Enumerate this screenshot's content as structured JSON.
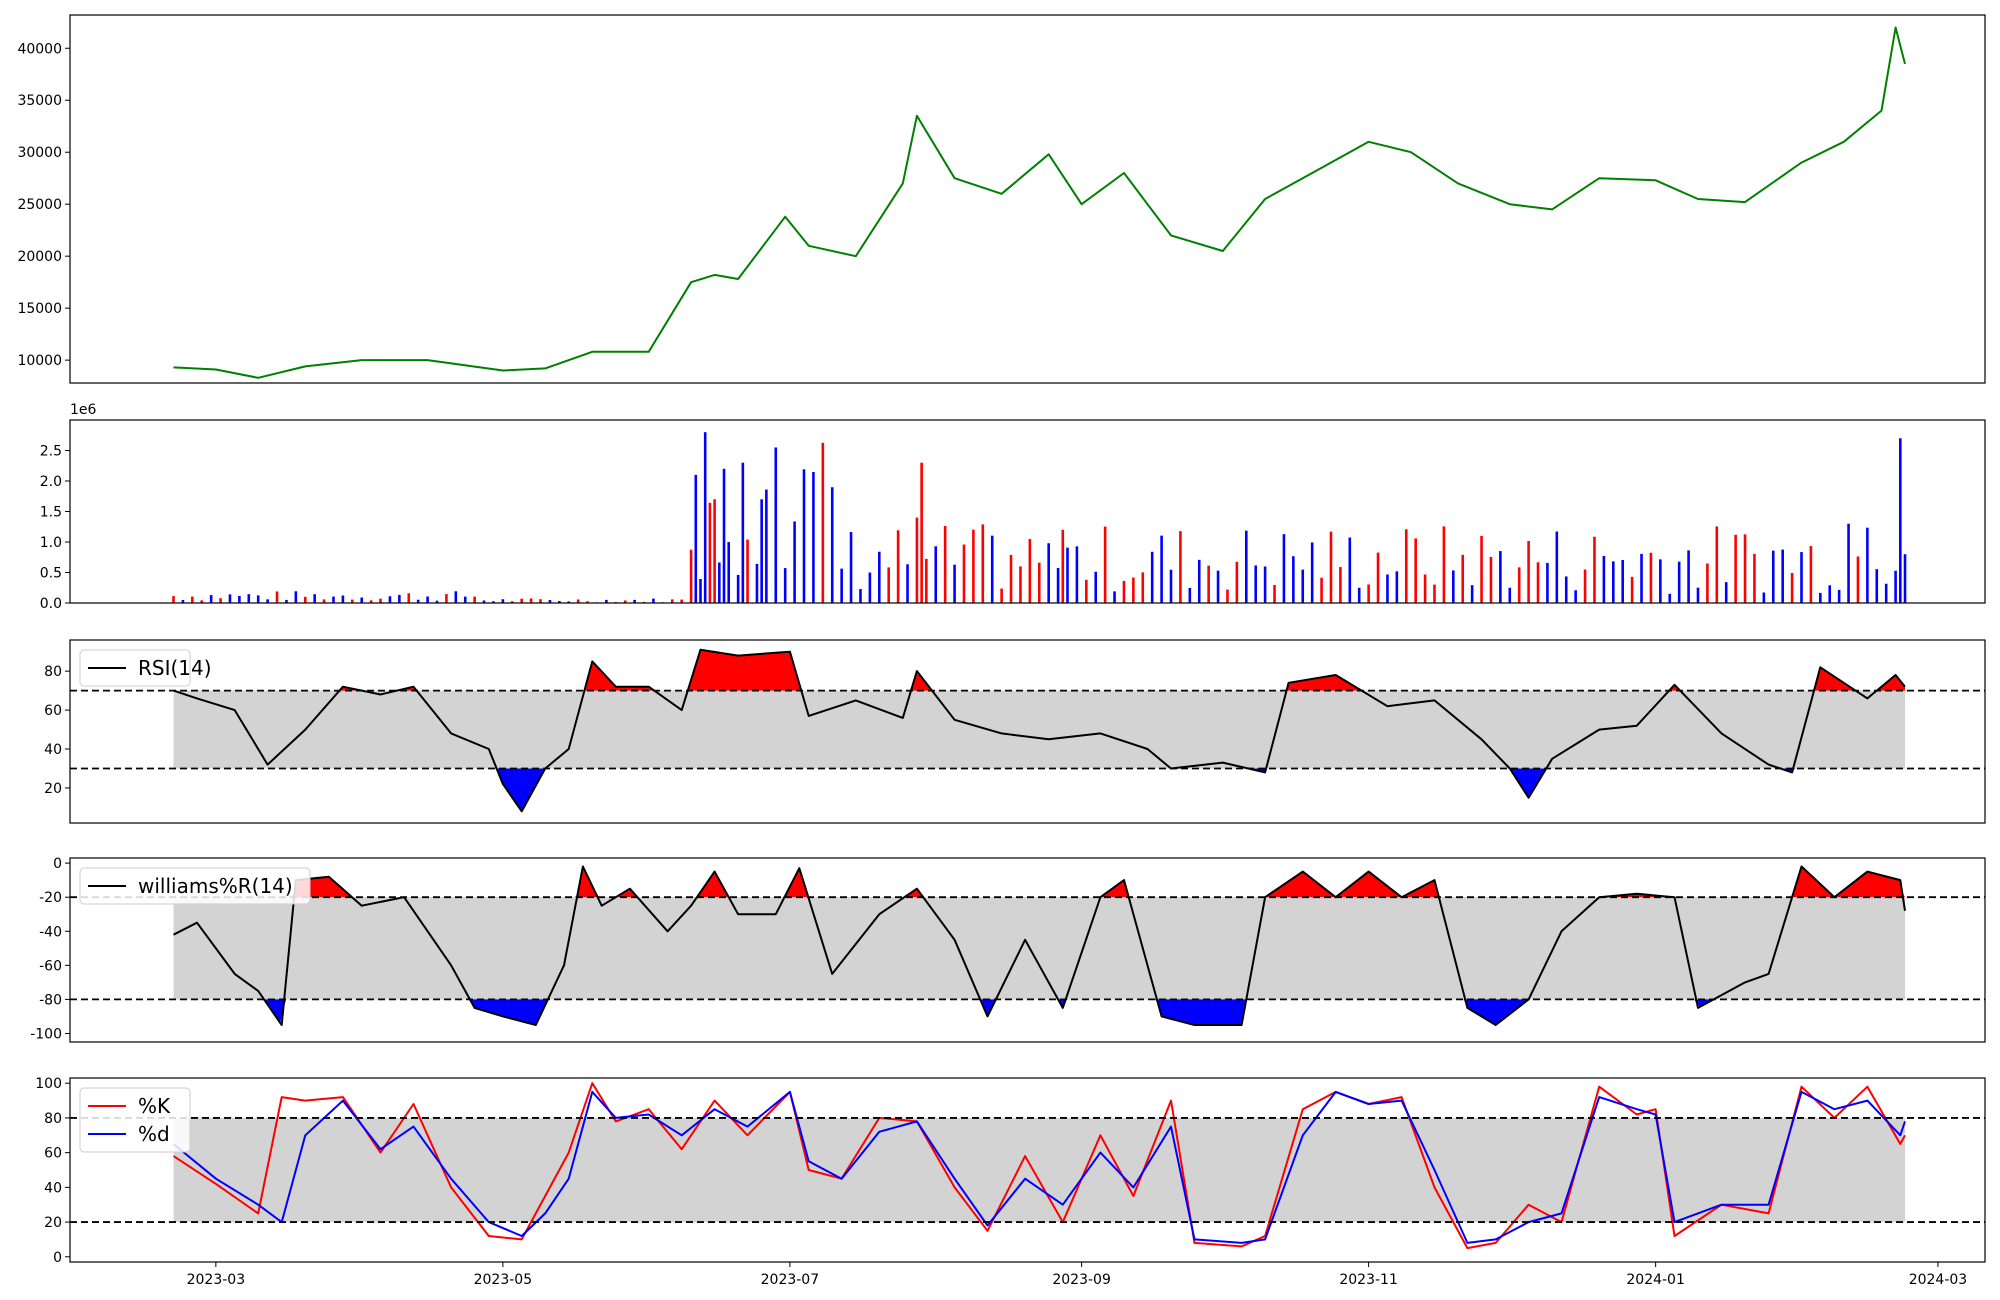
{
  "chart_data": [
    {
      "type": "line",
      "panel": "price",
      "series": [
        {
          "name": "",
          "color": "#008000",
          "x": [
            "2023-02-20",
            "2023-03-01",
            "2023-03-10",
            "2023-03-20",
            "2023-04-01",
            "2023-04-15",
            "2023-05-01",
            "2023-05-10",
            "2023-05-20",
            "2023-06-01",
            "2023-06-10",
            "2023-06-15",
            "2023-06-20",
            "2023-06-30",
            "2023-07-05",
            "2023-07-15",
            "2023-07-25",
            "2023-07-28",
            "2023-08-05",
            "2023-08-15",
            "2023-08-25",
            "2023-09-01",
            "2023-09-10",
            "2023-09-20",
            "2023-10-01",
            "2023-10-10",
            "2023-10-20",
            "2023-11-01",
            "2023-11-10",
            "2023-11-20",
            "2023-12-01",
            "2023-12-10",
            "2023-12-20",
            "2024-01-01",
            "2024-01-10",
            "2024-01-20",
            "2024-02-01",
            "2024-02-10",
            "2024-02-18",
            "2024-02-21",
            "2024-02-23"
          ],
          "values": [
            9300,
            9100,
            8300,
            9400,
            10000,
            10000,
            9000,
            9200,
            10800,
            10800,
            17500,
            18200,
            17800,
            23800,
            21000,
            20000,
            27000,
            33500,
            27500,
            26000,
            29800,
            25000,
            28000,
            22000,
            20500,
            25500,
            28000,
            31000,
            30000,
            27000,
            25000,
            24500,
            27500,
            27300,
            25500,
            25200,
            29000,
            31000,
            34000,
            42000,
            38500
          ]
        }
      ],
      "xlim": [
        "2023-01-29",
        "2024-03-11"
      ],
      "ylim": [
        7800,
        43200
      ],
      "yticks": [
        10000,
        15000,
        20000,
        25000,
        30000,
        35000,
        40000
      ],
      "xticks": []
    },
    {
      "type": "bar",
      "panel": "volume",
      "offset_text": "1e6",
      "up_color": "#ff0000",
      "down_color": "#0000ff",
      "ylim": [
        0,
        3.0
      ],
      "yticks": [
        "0.0",
        "0.5",
        "1.0",
        "1.5",
        "2.0",
        "2.5"
      ],
      "segments": [
        {
          "from": "2023-02-20",
          "to": "2023-04-25",
          "low": 0.03,
          "high": 0.2
        },
        {
          "from": "2023-04-26",
          "to": "2023-06-09",
          "low": 0.01,
          "high": 0.08
        },
        {
          "from": "2023-06-10",
          "to": "2023-07-10",
          "low": 0.3,
          "high": 2.8
        },
        {
          "from": "2023-07-11",
          "to": "2024-02-23",
          "low": 0.15,
          "high": 1.3
        }
      ],
      "peaks": [
        {
          "x": "2023-06-11",
          "value": 2.1
        },
        {
          "x": "2023-06-13",
          "value": 2.8
        },
        {
          "x": "2023-06-15",
          "value": 1.7
        },
        {
          "x": "2023-06-17",
          "value": 2.2
        },
        {
          "x": "2023-06-21",
          "value": 2.3
        },
        {
          "x": "2023-06-25",
          "value": 1.7
        },
        {
          "x": "2023-06-28",
          "value": 2.55
        },
        {
          "x": "2023-07-29",
          "value": 2.3
        },
        {
          "x": "2023-07-28",
          "value": 1.4
        },
        {
          "x": "2023-08-28",
          "value": 1.2
        },
        {
          "x": "2024-02-11",
          "value": 1.3
        },
        {
          "x": "2024-02-22",
          "value": 2.7
        },
        {
          "x": "2024-02-23",
          "value": 0.8
        }
      ],
      "xticks": []
    },
    {
      "type": "line",
      "panel": "rsi",
      "legend": [
        "RSI(14)"
      ],
      "legend_position": "top-left",
      "band": [
        30,
        70
      ],
      "overbought_color": "#ff0000",
      "oversold_color": "#0000ff",
      "band_color": "#d3d3d3",
      "ylim": [
        2,
        96
      ],
      "yticks": [
        20,
        40,
        60,
        80
      ],
      "series": [
        {
          "name": "RSI(14)",
          "color": "#000000",
          "x": [
            "2023-02-20",
            "2023-02-25",
            "2023-03-05",
            "2023-03-12",
            "2023-03-20",
            "2023-03-28",
            "2023-04-05",
            "2023-04-12",
            "2023-04-20",
            "2023-04-28",
            "2023-05-01",
            "2023-05-05",
            "2023-05-10",
            "2023-05-15",
            "2023-05-20",
            "2023-05-25",
            "2023-06-01",
            "2023-06-08",
            "2023-06-12",
            "2023-06-20",
            "2023-07-01",
            "2023-07-05",
            "2023-07-15",
            "2023-07-25",
            "2023-07-28",
            "2023-08-05",
            "2023-08-15",
            "2023-08-25",
            "2023-09-05",
            "2023-09-15",
            "2023-09-20",
            "2023-10-01",
            "2023-10-10",
            "2023-10-15",
            "2023-10-25",
            "2023-11-05",
            "2023-11-15",
            "2023-11-25",
            "2023-12-01",
            "2023-12-05",
            "2023-12-10",
            "2023-12-20",
            "2023-12-28",
            "2024-01-05",
            "2024-01-15",
            "2024-01-25",
            "2024-01-30",
            "2024-02-05",
            "2024-02-15",
            "2024-02-21",
            "2024-02-23"
          ],
          "values": [
            70,
            66,
            60,
            32,
            50,
            72,
            68,
            72,
            48,
            40,
            22,
            8,
            30,
            40,
            85,
            72,
            72,
            60,
            91,
            88,
            90,
            57,
            65,
            56,
            80,
            55,
            48,
            45,
            48,
            40,
            30,
            33,
            28,
            74,
            78,
            62,
            65,
            45,
            30,
            15,
            35,
            50,
            52,
            73,
            48,
            32,
            28,
            82,
            66,
            78,
            72
          ]
        }
      ],
      "xticks": []
    },
    {
      "type": "line",
      "panel": "williams",
      "legend": [
        "williams%R(14)"
      ],
      "legend_position": "top-left",
      "band": [
        -80,
        -20
      ],
      "overbought_color": "#ff0000",
      "oversold_color": "#0000ff",
      "band_color": "#d3d3d3",
      "ylim": [
        -105,
        3
      ],
      "yticks": [
        0,
        -20,
        -40,
        -60,
        -80,
        -100
      ],
      "series": [
        {
          "name": "williams%R(14)",
          "color": "#000000",
          "x": [
            "2023-02-20",
            "2023-02-25",
            "2023-03-05",
            "2023-03-10",
            "2023-03-15",
            "2023-03-18",
            "2023-03-25",
            "2023-04-01",
            "2023-04-10",
            "2023-04-20",
            "2023-04-25",
            "2023-05-01",
            "2023-05-08",
            "2023-05-14",
            "2023-05-18",
            "2023-05-22",
            "2023-05-28",
            "2023-06-05",
            "2023-06-10",
            "2023-06-15",
            "2023-06-20",
            "2023-06-28",
            "2023-07-03",
            "2023-07-10",
            "2023-07-20",
            "2023-07-28",
            "2023-08-05",
            "2023-08-12",
            "2023-08-20",
            "2023-08-28",
            "2023-09-05",
            "2023-09-10",
            "2023-09-18",
            "2023-09-25",
            "2023-10-05",
            "2023-10-10",
            "2023-10-18",
            "2023-10-25",
            "2023-11-01",
            "2023-11-08",
            "2023-11-15",
            "2023-11-22",
            "2023-11-28",
            "2023-12-05",
            "2023-12-12",
            "2023-12-20",
            "2023-12-28",
            "2024-01-05",
            "2024-01-10",
            "2024-01-20",
            "2024-01-25",
            "2024-02-01",
            "2024-02-08",
            "2024-02-15",
            "2024-02-22",
            "2024-02-23"
          ],
          "values": [
            -42,
            -35,
            -65,
            -75,
            -95,
            -10,
            -8,
            -25,
            -20,
            -60,
            -85,
            -90,
            -95,
            -60,
            -2,
            -25,
            -15,
            -40,
            -25,
            -5,
            -30,
            -30,
            -3,
            -65,
            -30,
            -15,
            -45,
            -90,
            -45,
            -85,
            -20,
            -10,
            -90,
            -95,
            -95,
            -20,
            -5,
            -20,
            -5,
            -20,
            -10,
            -85,
            -95,
            -80,
            -40,
            -20,
            -18,
            -20,
            -85,
            -70,
            -65,
            -2,
            -20,
            -5,
            -10,
            -28
          ]
        }
      ],
      "xticks": []
    },
    {
      "type": "line",
      "panel": "stochastic",
      "legend": [
        "%K",
        "%d"
      ],
      "legend_position": "top-left",
      "band": [
        20,
        80
      ],
      "band_color": "#d3d3d3",
      "ylim": [
        -3,
        103
      ],
      "yticks": [
        0,
        20,
        40,
        60,
        80,
        100
      ],
      "series": [
        {
          "name": "%K",
          "color": "#ff0000",
          "x": [
            "2023-02-20",
            "2023-03-01",
            "2023-03-10",
            "2023-03-15",
            "2023-03-20",
            "2023-03-28",
            "2023-04-05",
            "2023-04-12",
            "2023-04-20",
            "2023-04-28",
            "2023-05-05",
            "2023-05-10",
            "2023-05-15",
            "2023-05-20",
            "2023-05-25",
            "2023-06-01",
            "2023-06-08",
            "2023-06-15",
            "2023-06-22",
            "2023-07-01",
            "2023-07-05",
            "2023-07-12",
            "2023-07-20",
            "2023-07-28",
            "2023-08-05",
            "2023-08-12",
            "2023-08-20",
            "2023-08-28",
            "2023-09-05",
            "2023-09-12",
            "2023-09-20",
            "2023-09-25",
            "2023-10-05",
            "2023-10-10",
            "2023-10-18",
            "2023-10-25",
            "2023-11-01",
            "2023-11-08",
            "2023-11-15",
            "2023-11-22",
            "2023-11-28",
            "2023-12-05",
            "2023-12-12",
            "2023-12-20",
            "2023-12-28",
            "2024-01-01",
            "2024-01-05",
            "2024-01-15",
            "2024-01-25",
            "2024-02-01",
            "2024-02-08",
            "2024-02-15",
            "2024-02-22",
            "2024-02-23"
          ],
          "values": [
            58,
            42,
            25,
            92,
            90,
            92,
            60,
            88,
            40,
            12,
            10,
            35,
            60,
            100,
            78,
            85,
            62,
            90,
            70,
            95,
            50,
            45,
            80,
            78,
            40,
            15,
            58,
            20,
            70,
            35,
            90,
            8,
            6,
            12,
            85,
            95,
            88,
            92,
            40,
            5,
            8,
            30,
            20,
            98,
            82,
            85,
            12,
            30,
            25,
            98,
            80,
            98,
            65,
            70
          ]
        },
        {
          "name": "%d",
          "color": "#0000ff",
          "x": [
            "2023-02-20",
            "2023-03-01",
            "2023-03-10",
            "2023-03-15",
            "2023-03-20",
            "2023-03-28",
            "2023-04-05",
            "2023-04-12",
            "2023-04-20",
            "2023-04-28",
            "2023-05-05",
            "2023-05-10",
            "2023-05-15",
            "2023-05-20",
            "2023-05-25",
            "2023-06-01",
            "2023-06-08",
            "2023-06-15",
            "2023-06-22",
            "2023-07-01",
            "2023-07-05",
            "2023-07-12",
            "2023-07-20",
            "2023-07-28",
            "2023-08-05",
            "2023-08-12",
            "2023-08-20",
            "2023-08-28",
            "2023-09-05",
            "2023-09-12",
            "2023-09-20",
            "2023-09-25",
            "2023-10-05",
            "2023-10-10",
            "2023-10-18",
            "2023-10-25",
            "2023-11-01",
            "2023-11-08",
            "2023-11-15",
            "2023-11-22",
            "2023-11-28",
            "2023-12-05",
            "2023-12-12",
            "2023-12-20",
            "2023-12-28",
            "2024-01-01",
            "2024-01-05",
            "2024-01-15",
            "2024-01-25",
            "2024-02-01",
            "2024-02-08",
            "2024-02-15",
            "2024-02-22",
            "2024-02-23"
          ],
          "values": [
            65,
            45,
            30,
            20,
            70,
            90,
            62,
            75,
            45,
            20,
            12,
            25,
            45,
            95,
            80,
            82,
            70,
            85,
            75,
            95,
            55,
            45,
            72,
            78,
            45,
            18,
            45,
            30,
            60,
            40,
            75,
            10,
            8,
            10,
            70,
            95,
            88,
            90,
            50,
            8,
            10,
            20,
            25,
            92,
            85,
            82,
            20,
            30,
            30,
            95,
            85,
            90,
            70,
            78
          ]
        }
      ],
      "xticks": [
        "2023-03",
        "2023-05",
        "2023-07",
        "2023-09",
        "2023-11",
        "2024-01",
        "2024-03"
      ]
    }
  ]
}
